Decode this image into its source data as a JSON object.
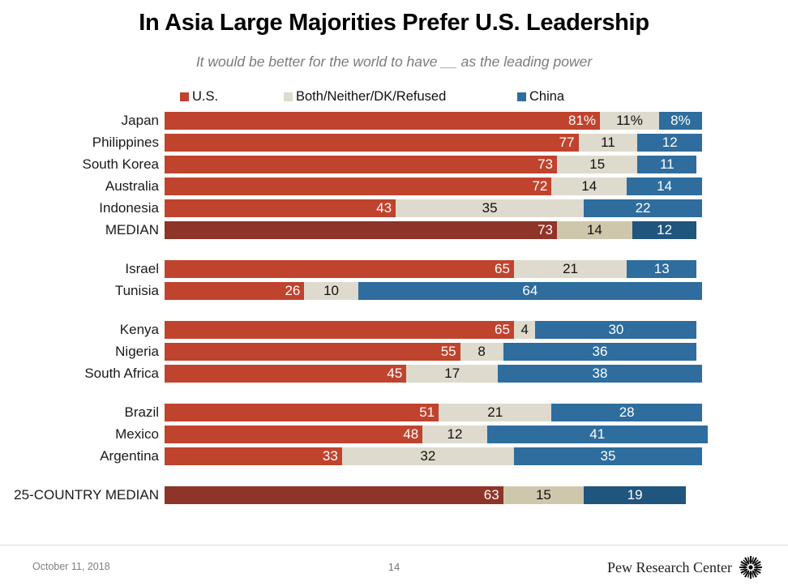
{
  "title": "In Asia Large Majorities Prefer U.S. Leadership",
  "subtitle": "It would be better for the world to have __ as the leading power",
  "legend": [
    {
      "label": "U.S.",
      "color": "#c0432e"
    },
    {
      "label": "Both/Neither/DK/Refused",
      "color": "#dedacd"
    },
    {
      "label": "China",
      "color": "#2e6d9d"
    }
  ],
  "colors": {
    "us": "#c0432e",
    "both": "#dedacd",
    "china": "#2e6d9d",
    "us_median": "#8e3428",
    "both_median": "#cfc7ab",
    "china_median": "#20557e",
    "value_on_dark": "#ffffff",
    "value_on_light": "#111111"
  },
  "chart_data": {
    "type": "bar",
    "subtype": "stacked-horizontal",
    "unit": "percent",
    "xlim": [
      0,
      100
    ],
    "series_names": [
      "U.S.",
      "Both/Neither/DK/Refused",
      "China"
    ],
    "legend_position": "top",
    "grid": false,
    "groups": [
      {
        "rows": [
          {
            "label": "Japan",
            "values": [
              81,
              11,
              8
            ],
            "display": [
              "81%",
              "11%",
              "8%"
            ],
            "median": false
          },
          {
            "label": "Philippines",
            "values": [
              77,
              11,
              12
            ],
            "display": [
              "77",
              "11",
              "12"
            ],
            "median": false
          },
          {
            "label": "South Korea",
            "values": [
              73,
              15,
              11
            ],
            "display": [
              "73",
              "15",
              "11"
            ],
            "median": false
          },
          {
            "label": "Australia",
            "values": [
              72,
              14,
              14
            ],
            "display": [
              "72",
              "14",
              "14"
            ],
            "median": false
          },
          {
            "label": "Indonesia",
            "values": [
              43,
              35,
              22
            ],
            "display": [
              "43",
              "35",
              "22"
            ],
            "median": false
          },
          {
            "label": "MEDIAN",
            "values": [
              73,
              14,
              12
            ],
            "display": [
              "73",
              "14",
              "12"
            ],
            "median": true
          }
        ]
      },
      {
        "rows": [
          {
            "label": "Israel",
            "values": [
              65,
              21,
              13
            ],
            "display": [
              "65",
              "21",
              "13"
            ],
            "median": false
          },
          {
            "label": "Tunisia",
            "values": [
              26,
              10,
              64
            ],
            "display": [
              "26",
              "10",
              "64"
            ],
            "median": false
          }
        ]
      },
      {
        "rows": [
          {
            "label": "Kenya",
            "values": [
              65,
              4,
              30
            ],
            "display": [
              "65",
              "4",
              "30"
            ],
            "median": false
          },
          {
            "label": "Nigeria",
            "values": [
              55,
              8,
              36
            ],
            "display": [
              "55",
              "8",
              "36"
            ],
            "median": false
          },
          {
            "label": "South Africa",
            "values": [
              45,
              17,
              38
            ],
            "display": [
              "45",
              "17",
              "38"
            ],
            "median": false
          }
        ]
      },
      {
        "rows": [
          {
            "label": "Brazil",
            "values": [
              51,
              21,
              28
            ],
            "display": [
              "51",
              "21",
              "28"
            ],
            "median": false
          },
          {
            "label": "Mexico",
            "values": [
              48,
              12,
              41
            ],
            "display": [
              "48",
              "12",
              "41"
            ],
            "median": false
          },
          {
            "label": "Argentina",
            "values": [
              33,
              32,
              35
            ],
            "display": [
              "33",
              "32",
              "35"
            ],
            "median": false
          }
        ]
      },
      {
        "rows": [
          {
            "label": "25-COUNTRY MEDIAN",
            "values": [
              63,
              15,
              19
            ],
            "display": [
              "63",
              "15",
              "19"
            ],
            "median": true
          }
        ]
      }
    ]
  },
  "footer": {
    "date": "October 11, 2018",
    "page": "14",
    "brand": "Pew Research Center"
  }
}
